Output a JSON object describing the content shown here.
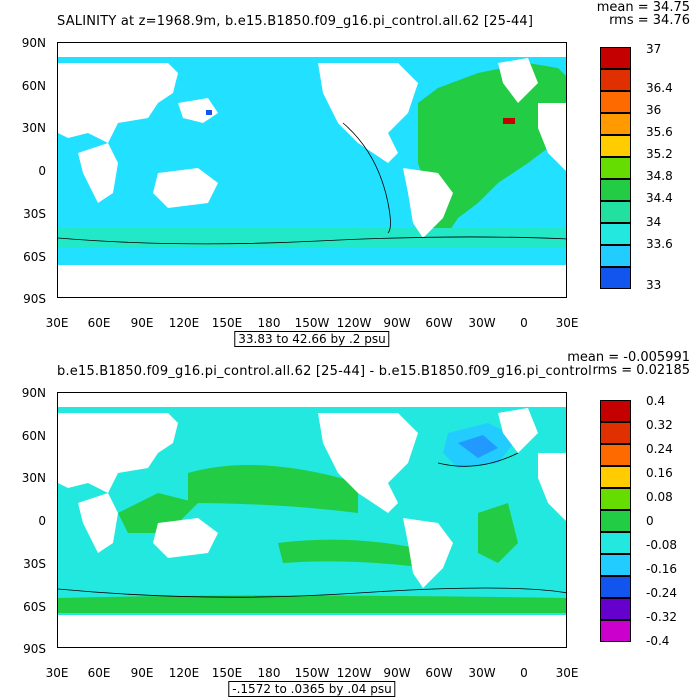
{
  "panels": [
    {
      "title": "SALINITY at z=1968.9m, b.e15.B1850.f09_g16.pi_control.all.62 [25-44]",
      "mean_text": "mean = 34.75",
      "rms_text": "rms = 34.76",
      "range_text": "33.83 to 42.66 by .2 psu",
      "lat_labels": [
        "90N",
        "60N",
        "30N",
        "0",
        "30S",
        "60S",
        "90S"
      ],
      "lon_labels": [
        "30E",
        "60E",
        "90E",
        "120E",
        "150E",
        "180",
        "150W",
        "120W",
        "90W",
        "60W",
        "30W",
        "0",
        "30E"
      ],
      "legend_labels": [
        "37",
        "36.4",
        "36",
        "35.6",
        "35.2",
        "34.8",
        "34.4",
        "34",
        "33.6",
        "33"
      ],
      "legend_colors": [
        "#c40000",
        "#e03000",
        "#ff6a00",
        "#ff9a00",
        "#ffcc00",
        "#ffff00",
        "#66dd00",
        "#22cc44",
        "#22e0a0",
        "#22e8e0",
        "#22ccff",
        "#2299ff",
        "#1155ee",
        "#0000dd",
        "#6600cc",
        "#cc00cc",
        "#cccccc",
        "#666666"
      ],
      "ocean_color": "#22e0ff",
      "atlantic_color": "#22cc44"
    },
    {
      "title": "b.e15.B1850.f09_g16.pi_control.all.62 [25-44] - b.e15.B1850.f09_g16.pi_control",
      "mean_text": "mean = -0.005991",
      "rms_text": "rms = 0.02185",
      "range_text": "-.1572 to .0365 by .04 psu",
      "lat_labels": [
        "90N",
        "60N",
        "30N",
        "0",
        "30S",
        "60S",
        "90S"
      ],
      "lon_labels": [
        "30E",
        "60E",
        "90E",
        "120E",
        "150E",
        "180",
        "150W",
        "120W",
        "90W",
        "60W",
        "30W",
        "0",
        "30E"
      ],
      "legend_labels": [
        "0.4",
        "0.32",
        "0.24",
        "0.16",
        "0.08",
        "0",
        "-0.08",
        "-0.16",
        "-0.24",
        "-0.32",
        "-0.4"
      ],
      "legend_colors": [
        "#c40000",
        "#e03000",
        "#ff6a00",
        "#ff9a00",
        "#ffcc00",
        "#ffff00",
        "#66dd00",
        "#22cc44",
        "#22e0a0",
        "#22e8e0",
        "#22ccff",
        "#2299ff",
        "#1155ee",
        "#0000dd",
        "#6600cc",
        "#cc00cc",
        "#cccccc",
        "#666666"
      ],
      "ocean_color": "#22e8e0",
      "atlantic_color": "#22cc44"
    }
  ]
}
